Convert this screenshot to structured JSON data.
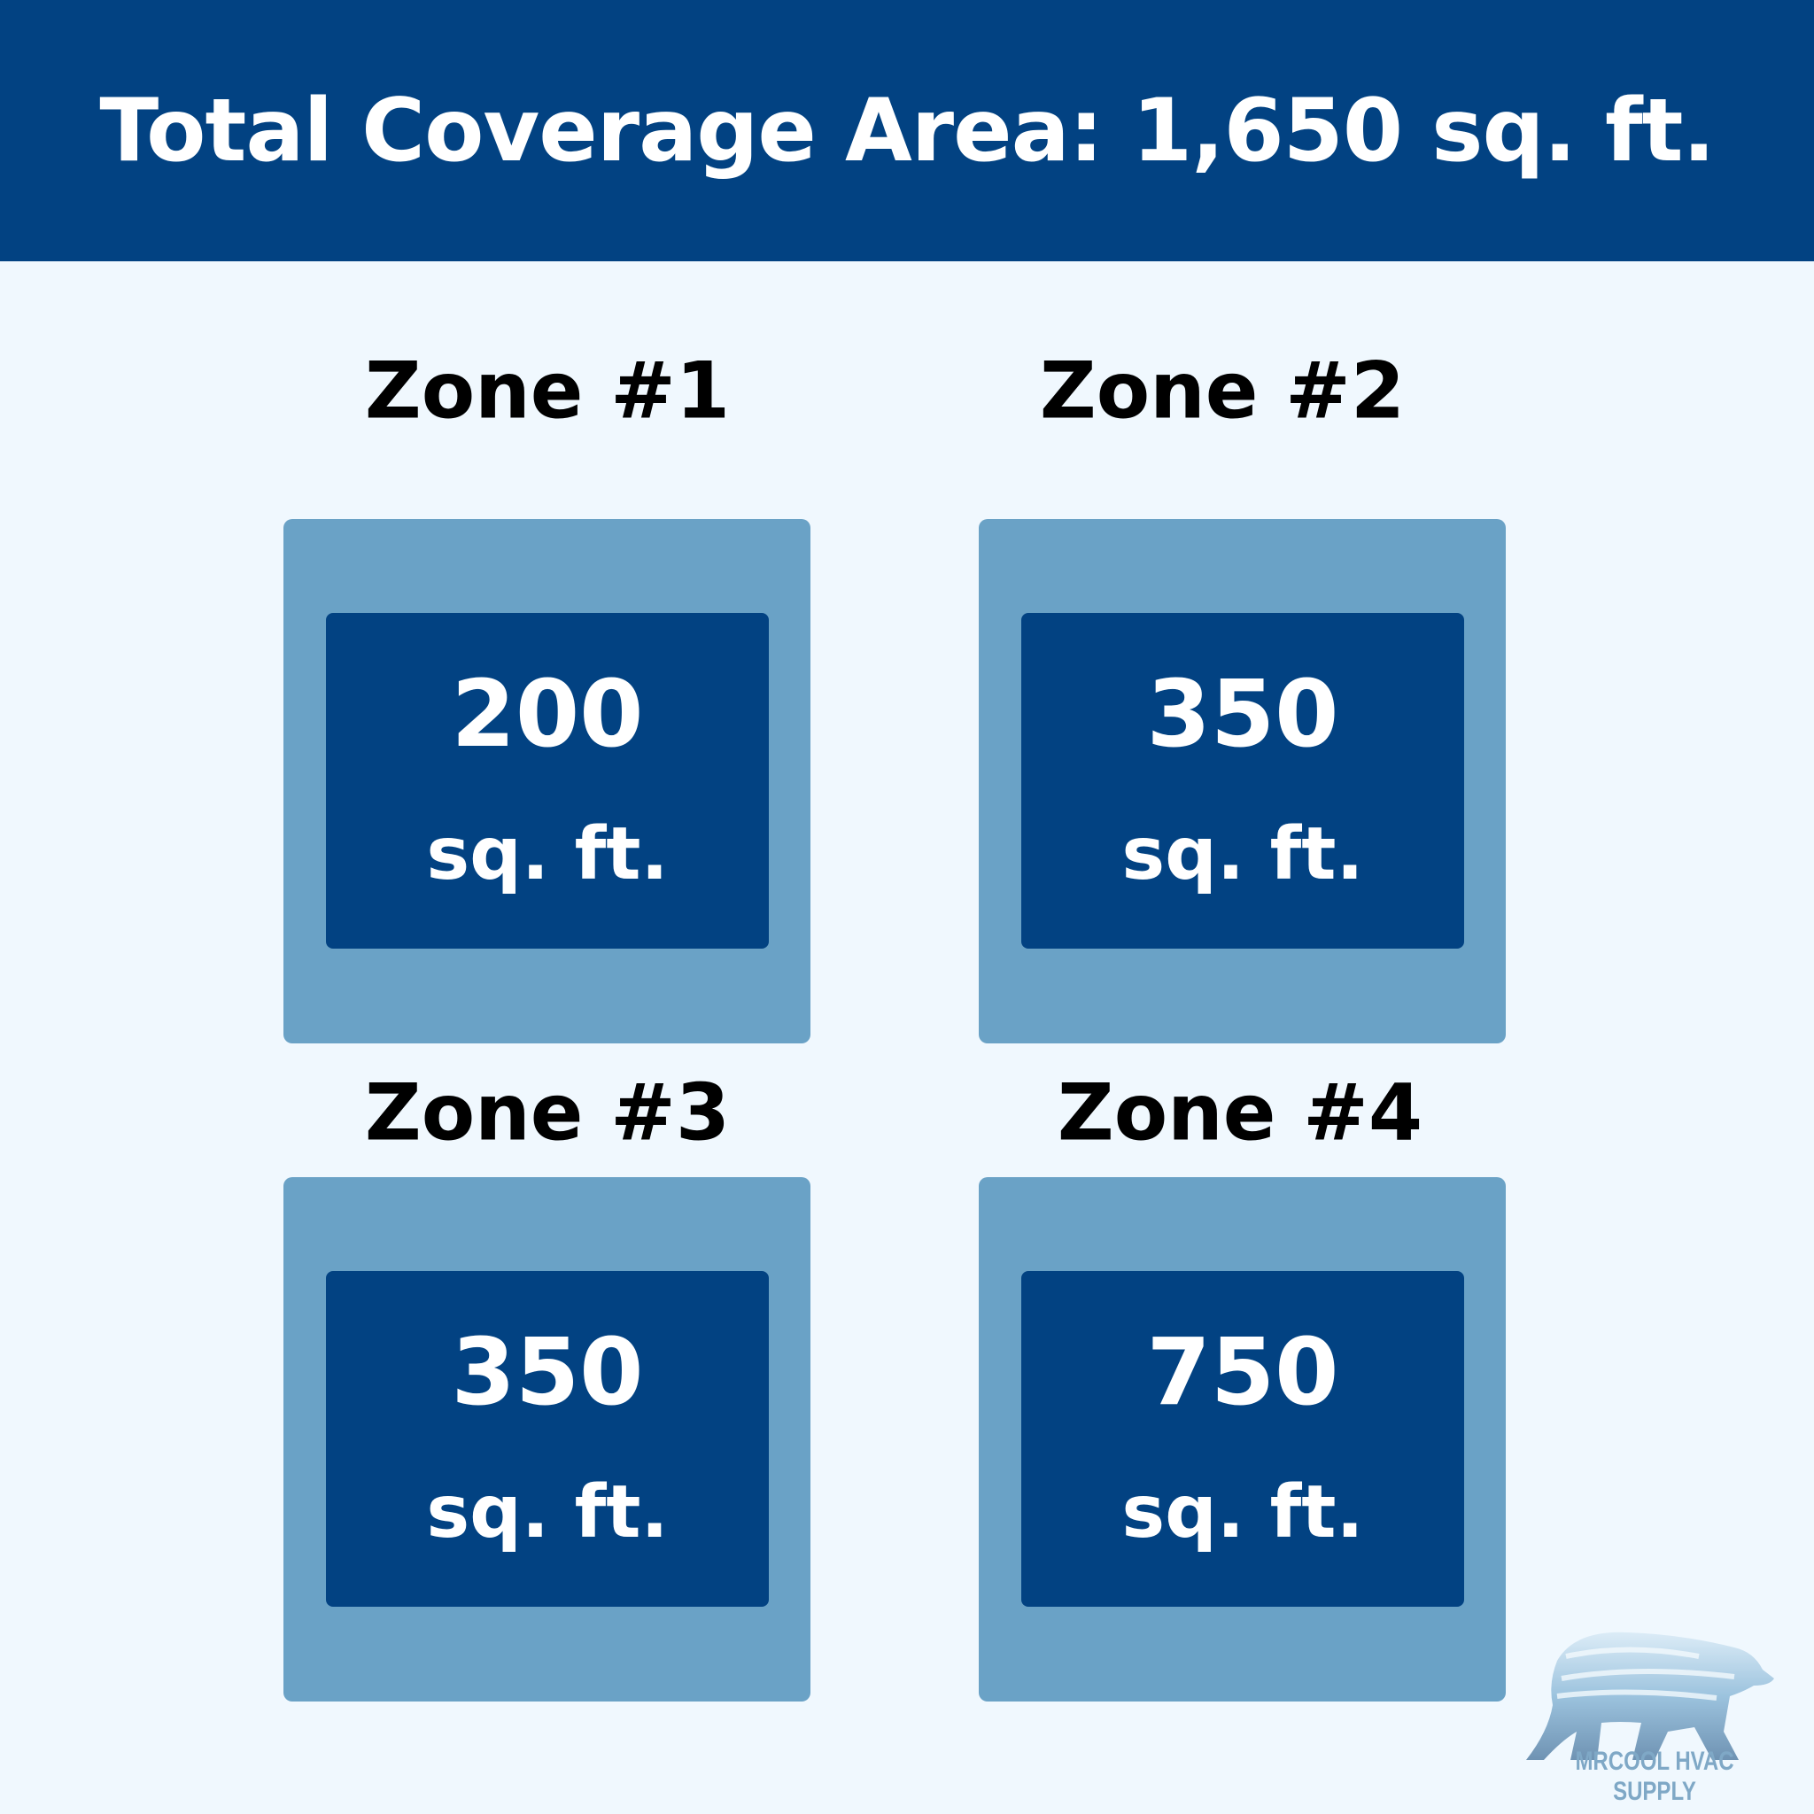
{
  "header": {
    "title": "Total Coverage Area: 1,650 sq. ft."
  },
  "zones": [
    {
      "label": "Zone #1",
      "value": "200",
      "unit": "sq. ft."
    },
    {
      "label": "Zone #2",
      "value": "350",
      "unit": "sq. ft."
    },
    {
      "label": "Zone #3",
      "value": "350",
      "unit": "sq. ft."
    },
    {
      "label": "Zone #4",
      "value": "750",
      "unit": "sq. ft."
    }
  ],
  "logo": {
    "text": "MRCOOL HVAC SUPPLY",
    "icon": "polar-bear-icon"
  },
  "colors": {
    "header": "#024282",
    "outer_box": "#6aa2c6",
    "inner_box": "#024282",
    "background": "#f0f8fe"
  }
}
